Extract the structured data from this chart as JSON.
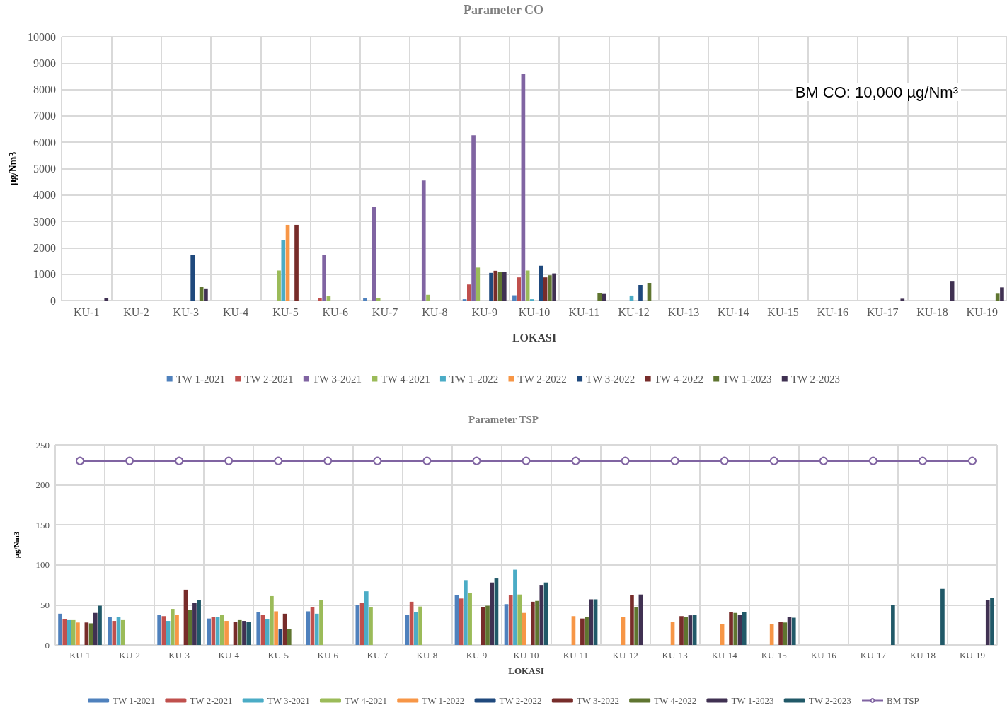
{
  "chart_data": [
    {
      "type": "bar",
      "title": "Parameter CO",
      "xlabel": "LOKASI",
      "ylabel": "µg/Nm3",
      "categories": [
        "KU-1",
        "KU-2",
        "KU-3",
        "KU-4",
        "KU-5",
        "KU-6",
        "KU-7",
        "KU-8",
        "KU-9",
        "KU-10",
        "KU-11",
        "KU-12",
        "KU-13",
        "KU-14",
        "KU-15",
        "KU-16",
        "KU-17",
        "KU-18",
        "KU-19"
      ],
      "series": [
        {
          "name": "TW 1-2021",
          "color": "#4f81bd",
          "values": [
            null,
            null,
            null,
            null,
            null,
            null,
            100,
            null,
            50,
            200,
            null,
            null,
            null,
            null,
            null,
            null,
            null,
            null,
            null
          ]
        },
        {
          "name": "TW 2-2021",
          "color": "#c0504d",
          "values": [
            null,
            null,
            null,
            null,
            null,
            100,
            null,
            null,
            610,
            880,
            null,
            null,
            null,
            null,
            null,
            null,
            null,
            null,
            null
          ]
        },
        {
          "name": "TW 3-2021",
          "color": "#8064a2",
          "values": [
            null,
            null,
            null,
            null,
            null,
            1720,
            3540,
            4550,
            6270,
            8590,
            null,
            null,
            null,
            null,
            null,
            null,
            null,
            null,
            null
          ]
        },
        {
          "name": "TW 4-2021",
          "color": "#9bbb59",
          "values": [
            null,
            null,
            null,
            null,
            1140,
            160,
            90,
            220,
            1250,
            1140,
            null,
            null,
            null,
            null,
            null,
            null,
            null,
            null,
            null
          ]
        },
        {
          "name": "TW 1-2022",
          "color": "#4bacc6",
          "values": [
            null,
            null,
            null,
            null,
            2300,
            null,
            null,
            null,
            null,
            50,
            null,
            190,
            null,
            null,
            null,
            null,
            null,
            null,
            null
          ]
        },
        {
          "name": "TW 2-2022",
          "color": "#f79646",
          "values": [
            null,
            null,
            null,
            null,
            2870,
            null,
            null,
            null,
            null,
            null,
            null,
            null,
            null,
            null,
            null,
            null,
            null,
            null,
            null
          ]
        },
        {
          "name": "TW 3-2022",
          "color": "#1f497d",
          "values": [
            null,
            null,
            1720,
            null,
            null,
            null,
            null,
            null,
            1050,
            1320,
            null,
            590,
            null,
            null,
            null,
            null,
            null,
            null,
            null
          ]
        },
        {
          "name": "TW 4-2022",
          "color": "#772c2a",
          "values": [
            null,
            null,
            null,
            null,
            2870,
            null,
            null,
            null,
            1130,
            880,
            null,
            null,
            null,
            null,
            null,
            null,
            null,
            null,
            null
          ]
        },
        {
          "name": "TW 1-2023",
          "color": "#5f7530",
          "values": [
            null,
            null,
            510,
            null,
            null,
            null,
            null,
            null,
            1080,
            960,
            280,
            670,
            null,
            null,
            null,
            null,
            null,
            null,
            260
          ]
        },
        {
          "name": "TW 2-2023",
          "color": "#403152",
          "values": [
            90,
            null,
            460,
            null,
            null,
            null,
            null,
            null,
            1100,
            1030,
            250,
            null,
            null,
            null,
            null,
            null,
            70,
            720,
            500
          ]
        }
      ],
      "ylim": [
        0,
        10000
      ],
      "yticks": [
        0,
        1000,
        2000,
        3000,
        4000,
        5000,
        6000,
        7000,
        8000,
        9000,
        10000
      ],
      "grid": true,
      "legend": "bottom",
      "annotations": [
        "BM CO: 10,000 µg/Nm³"
      ]
    },
    {
      "type": "bar",
      "title": "Parameter TSP",
      "xlabel": "LOKASI",
      "ylabel": "µg/Nm3",
      "categories": [
        "KU-1",
        "KU-2",
        "KU-3",
        "KU-4",
        "KU-5",
        "KU-6",
        "KU-7",
        "KU-8",
        "KU-9",
        "KU-10",
        "KU-11",
        "KU-12",
        "KU-13",
        "KU-14",
        "KU-15",
        "KU-16",
        "KU-17",
        "KU-18",
        "KU-19"
      ],
      "series": [
        {
          "name": "TW 1-2021",
          "color": "#4f81bd",
          "values": [
            39,
            35,
            38,
            33,
            41,
            42,
            50,
            38,
            62,
            51,
            null,
            null,
            null,
            null,
            null,
            null,
            null,
            null,
            null
          ]
        },
        {
          "name": "TW 2-2021",
          "color": "#c0504d",
          "values": [
            32,
            30,
            36,
            35,
            38,
            47,
            53,
            54,
            58,
            62,
            null,
            null,
            null,
            null,
            null,
            null,
            null,
            null,
            null
          ]
        },
        {
          "name": "TW 3-2021",
          "color": "#4bacc6",
          "values": [
            31,
            35,
            30,
            35,
            32,
            39,
            67,
            41,
            81,
            94,
            null,
            null,
            null,
            null,
            null,
            null,
            null,
            null,
            null
          ]
        },
        {
          "name": "TW 4-2021",
          "color": "#9bbb59",
          "values": [
            31,
            31,
            45,
            38,
            61,
            56,
            47,
            48,
            65,
            63,
            null,
            null,
            null,
            null,
            null,
            null,
            null,
            null,
            null
          ]
        },
        {
          "name": "TW 1-2022",
          "color": "#f79646",
          "values": [
            28,
            null,
            38,
            30,
            42,
            null,
            null,
            null,
            null,
            40,
            36,
            35,
            29,
            26,
            26,
            null,
            null,
            null,
            null
          ]
        },
        {
          "name": "TW 2-2022",
          "color": "#1f497d",
          "values": [
            null,
            null,
            null,
            null,
            20,
            null,
            null,
            null,
            null,
            null,
            null,
            null,
            null,
            null,
            null,
            null,
            null,
            null,
            null
          ]
        },
        {
          "name": "TW 3-2022",
          "color": "#772c2a",
          "values": [
            28,
            null,
            69,
            29,
            39,
            null,
            null,
            null,
            47,
            54,
            33,
            62,
            36,
            41,
            29,
            null,
            null,
            null,
            null
          ]
        },
        {
          "name": "TW 4-2022",
          "color": "#5f7530",
          "values": [
            27,
            null,
            44,
            31,
            20,
            null,
            null,
            null,
            49,
            55,
            35,
            47,
            35,
            40,
            28,
            null,
            null,
            null,
            null
          ]
        },
        {
          "name": "TW 1-2023",
          "color": "#403152",
          "values": [
            40,
            null,
            53,
            30,
            null,
            null,
            null,
            null,
            78,
            75,
            57,
            63,
            37,
            38,
            35,
            null,
            null,
            null,
            56
          ]
        },
        {
          "name": "TW 2-2023",
          "color": "#215968",
          "values": [
            49,
            null,
            56,
            29,
            null,
            null,
            null,
            null,
            83,
            78,
            57,
            null,
            38,
            41,
            34,
            null,
            50,
            70,
            59
          ]
        },
        {
          "name": "BM TSP",
          "type": "line",
          "color": "#8064a2",
          "values": [
            230,
            230,
            230,
            230,
            230,
            230,
            230,
            230,
            230,
            230,
            230,
            230,
            230,
            230,
            230,
            230,
            230,
            230,
            230
          ]
        }
      ],
      "ylim": [
        0,
        250
      ],
      "yticks": [
        0,
        50,
        100,
        150,
        200,
        250
      ],
      "grid": true,
      "legend": "bottom",
      "marker": "circle"
    }
  ]
}
